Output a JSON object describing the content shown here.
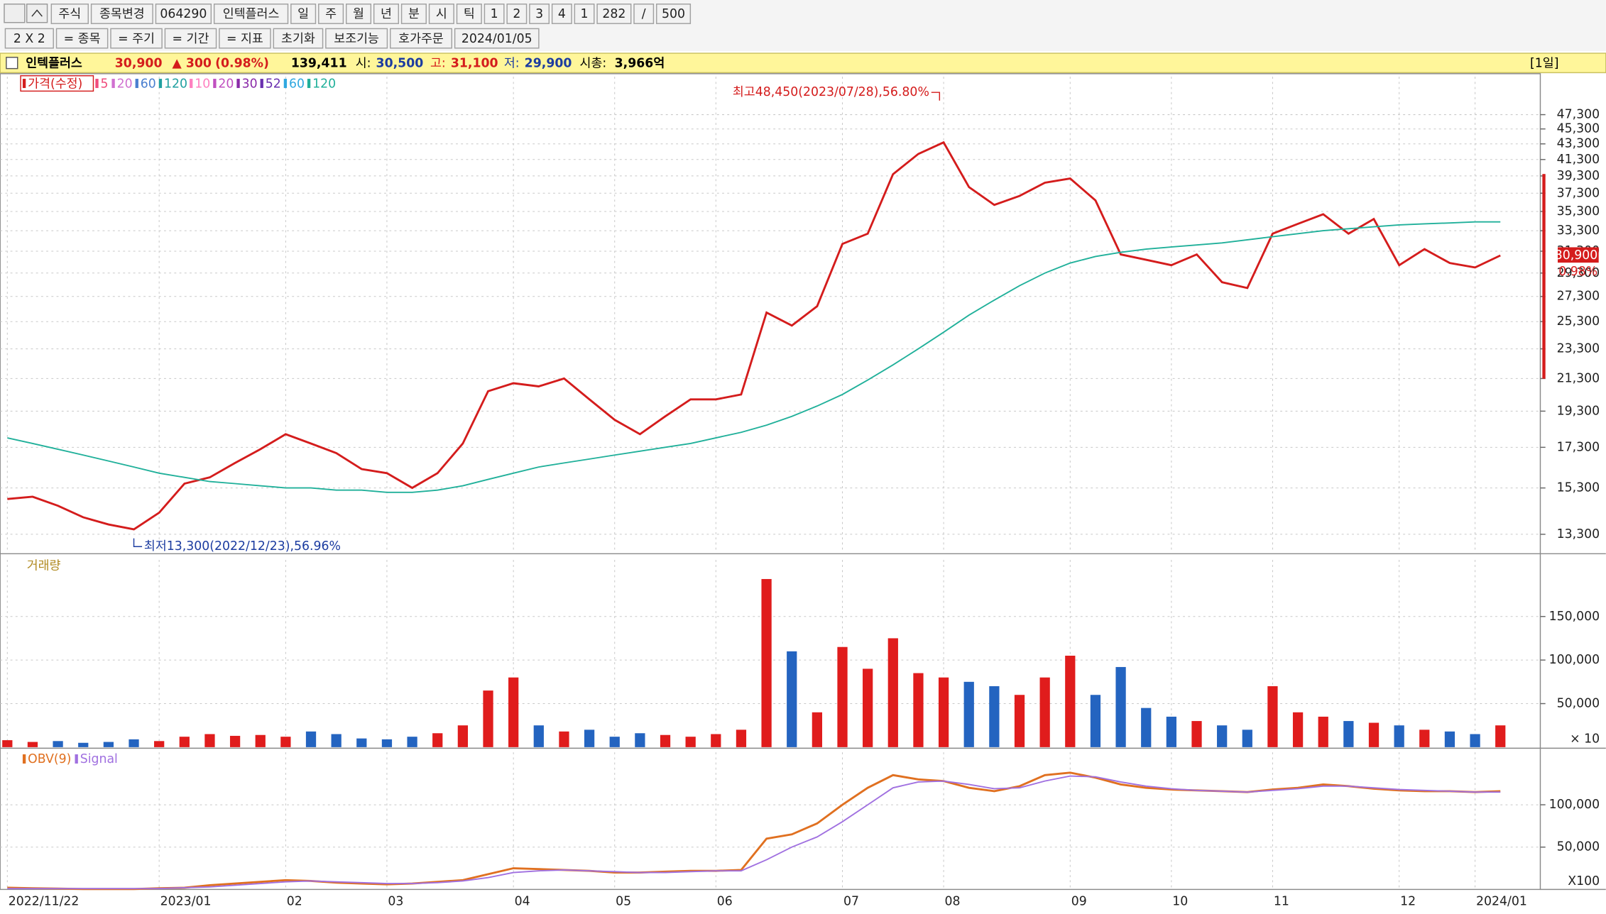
{
  "toolbar": {
    "row1": [
      "주식",
      "종목변경",
      "064290",
      "인텍플러스",
      "일",
      "주",
      "월",
      "년",
      "분",
      "시",
      "틱",
      "1",
      "2",
      "3",
      "4",
      "1",
      "282",
      "/",
      "500"
    ],
    "row2": [
      "2 X 2",
      "= 종목",
      "= 주기",
      "= 기간",
      "= 지표",
      "초기화",
      "보조기능",
      "호가주문",
      "2024/01/05"
    ]
  },
  "info_bar": {
    "name": "인텍플러스",
    "price": "30,900",
    "change": "▲ 300",
    "change_pct": "(0.98%)",
    "volume": "139,411",
    "open_label": "시:",
    "open": "30,500",
    "high_label": "고:",
    "high": "31,100",
    "low_label": "저:",
    "low": "29,900",
    "cap_label": "시총:",
    "cap": "3,966억",
    "period": "[1일]"
  },
  "chart_data": [
    {
      "type": "line",
      "log": true,
      "grid": true,
      "categories": [
        "2022/11/22",
        null,
        null,
        null,
        null,
        null,
        "2023/01",
        null,
        null,
        null,
        null,
        "02",
        null,
        null,
        null,
        "03",
        null,
        null,
        null,
        null,
        "04",
        null,
        null,
        null,
        "05",
        null,
        null,
        null,
        "06",
        null,
        null,
        null,
        null,
        "07",
        null,
        null,
        null,
        "08",
        null,
        null,
        null,
        null,
        "09",
        null,
        null,
        null,
        "10",
        null,
        null,
        null,
        "11",
        null,
        null,
        null,
        null,
        "12",
        null,
        null,
        "2024/01",
        null
      ],
      "series": [
        {
          "name": "가격(수정)",
          "color": "#d41c1c",
          "values": [
            14800,
            14900,
            14500,
            14000,
            13700,
            13500,
            14200,
            15500,
            15800,
            16500,
            17200,
            18000,
            17500,
            17000,
            16200,
            16000,
            15300,
            16000,
            17500,
            20500,
            21000,
            20800,
            21300,
            20000,
            18800,
            18000,
            19000,
            20000,
            20000,
            20300,
            26000,
            25000,
            26500,
            32000,
            33000,
            39500,
            42000,
            43500,
            38000,
            36000,
            37000,
            38500,
            39000,
            36500,
            31000,
            30500,
            30000,
            31000,
            28500,
            28000,
            33000,
            34000,
            35000,
            33000,
            34500,
            30000,
            31500,
            30200,
            29800,
            30900
          ]
        },
        {
          "name": "5",
          "color": "#f04c7c"
        },
        {
          "name": "20",
          "color": "#d070d0"
        },
        {
          "name": "60",
          "color": "#4a7fd0"
        },
        {
          "name": "120",
          "color": "#20a0a0"
        },
        {
          "name": "10",
          "color": "#ff80c0"
        },
        {
          "name": "20",
          "color": "#c050c0"
        },
        {
          "name": "30",
          "color": "#8a2aa8"
        },
        {
          "name": "52",
          "color": "#6a30b0"
        },
        {
          "name": "60",
          "color": "#30a8e0"
        },
        {
          "name": "120",
          "color": "#20b09a",
          "values": [
            17800,
            17500,
            17200,
            16900,
            16600,
            16300,
            16000,
            15800,
            15600,
            15500,
            15400,
            15300,
            15300,
            15200,
            15200,
            15100,
            15100,
            15200,
            15400,
            15700,
            16000,
            16300,
            16500,
            16700,
            16900,
            17100,
            17300,
            17500,
            17800,
            18100,
            18500,
            19000,
            19600,
            20300,
            21200,
            22200,
            23300,
            24500,
            25800,
            27000,
            28200,
            29300,
            30200,
            30800,
            31200,
            31500,
            31700,
            31900,
            32100,
            32400,
            32700,
            33000,
            33300,
            33500,
            33700,
            33900,
            34000,
            34100,
            34200,
            34200
          ]
        }
      ],
      "ylim": [
        12580,
        53040
      ],
      "yticks": [
        {
          "value": 13300,
          "label": "13,300"
        },
        {
          "value": 15300,
          "label": "15,300"
        },
        {
          "value": 17300,
          "label": "17,300"
        },
        {
          "value": 19300,
          "label": "19,300"
        },
        {
          "value": 21300,
          "label": "21,300"
        },
        {
          "value": 23300,
          "label": "23,300"
        },
        {
          "value": 25300,
          "label": "25,300"
        },
        {
          "value": 27300,
          "label": "27,300"
        },
        {
          "value": 29300,
          "label": "29,300"
        },
        {
          "value": 31300,
          "label": "31,300"
        },
        {
          "value": 33300,
          "label": "33,300"
        },
        {
          "value": 35300,
          "label": "35,300"
        },
        {
          "value": 37300,
          "label": "37,300"
        },
        {
          "value": 39300,
          "label": "39,300"
        },
        {
          "value": 41300,
          "label": "41,300"
        },
        {
          "value": 43300,
          "label": "43,300"
        },
        {
          "value": 45300,
          "label": "45,300"
        },
        {
          "value": 47300,
          "label": "47,300"
        }
      ],
      "annotations": [
        {
          "text": "최고48,450(2023/07/28),56.80%",
          "at": 37,
          "value": 48450,
          "color": "#d41c1c"
        },
        {
          "text": "최저13,300(2022/12/23),56.96%",
          "at": 5,
          "value": 13300,
          "color": "#1c3ca0"
        }
      ],
      "change_pct_label": "0.98%"
    },
    {
      "type": "bar",
      "title": "거래량",
      "grid": true,
      "up_color": "#e01c1c",
      "down_color": "#2464c0",
      "values": [
        8000,
        6000,
        7000,
        5000,
        6000,
        9000,
        7000,
        12000,
        15000,
        13000,
        14000,
        12000,
        18000,
        15000,
        10000,
        9000,
        12000,
        16000,
        25000,
        65000,
        80000,
        25000,
        18000,
        20000,
        12000,
        16000,
        14000,
        12000,
        15000,
        20000,
        193000,
        110000,
        40000,
        115000,
        90000,
        125000,
        85000,
        80000,
        75000,
        70000,
        60000,
        80000,
        105000,
        60000,
        92000,
        45000,
        35000,
        30000,
        25000,
        20000,
        70000,
        40000,
        35000,
        30000,
        28000,
        25000,
        20000,
        18000,
        15000,
        25000
      ],
      "ylim": [
        0,
        215000
      ],
      "yticks": [
        {
          "value": 50000,
          "label": "50,000"
        },
        {
          "value": 100000,
          "label": "100,000"
        },
        {
          "value": 150000,
          "label": "150,000"
        }
      ],
      "unit_label": "× 10"
    },
    {
      "type": "line",
      "grid": true,
      "series": [
        {
          "name": "OBV(9)",
          "color": "#e07020",
          "values": [
            2000,
            1500,
            1000,
            500,
            500,
            500,
            1500,
            2000,
            5000,
            7000,
            9000,
            11000,
            10000,
            8000,
            7000,
            6000,
            7000,
            9000,
            11000,
            18000,
            25000,
            24000,
            23000,
            22000,
            20000,
            20000,
            21000,
            22000,
            22000,
            23000,
            60000,
            65000,
            78000,
            100000,
            120000,
            135000,
            130000,
            128000,
            120000,
            116000,
            122000,
            135000,
            138000,
            132000,
            124000,
            120000,
            118000,
            117000,
            116000,
            115000,
            118000,
            120000,
            124000,
            122000,
            119000,
            117000,
            116000,
            116000,
            115000,
            116000
          ]
        },
        {
          "name": "Signal",
          "color": "#a070e0",
          "values": [
            1000,
            1000,
            1000,
            1000,
            1000,
            1000,
            1000,
            2000,
            3000,
            5000,
            7000,
            9000,
            10000,
            9000,
            8000,
            7000,
            7000,
            8000,
            10000,
            14000,
            20000,
            22000,
            23000,
            22000,
            21000,
            20000,
            20000,
            21000,
            22000,
            22000,
            35000,
            50000,
            62000,
            80000,
            100000,
            120000,
            127000,
            128000,
            124000,
            119000,
            120000,
            128000,
            134000,
            133000,
            127000,
            122000,
            119000,
            117000,
            116000,
            115000,
            117000,
            119000,
            122000,
            122000,
            120000,
            118000,
            117000,
            116000,
            115000,
            115000
          ]
        }
      ],
      "ylim": [
        0,
        162000
      ],
      "yticks": [
        {
          "value": 50000,
          "label": "50,000"
        },
        {
          "value": 100000,
          "label": "100,000"
        }
      ],
      "unit_label": "X100"
    }
  ]
}
